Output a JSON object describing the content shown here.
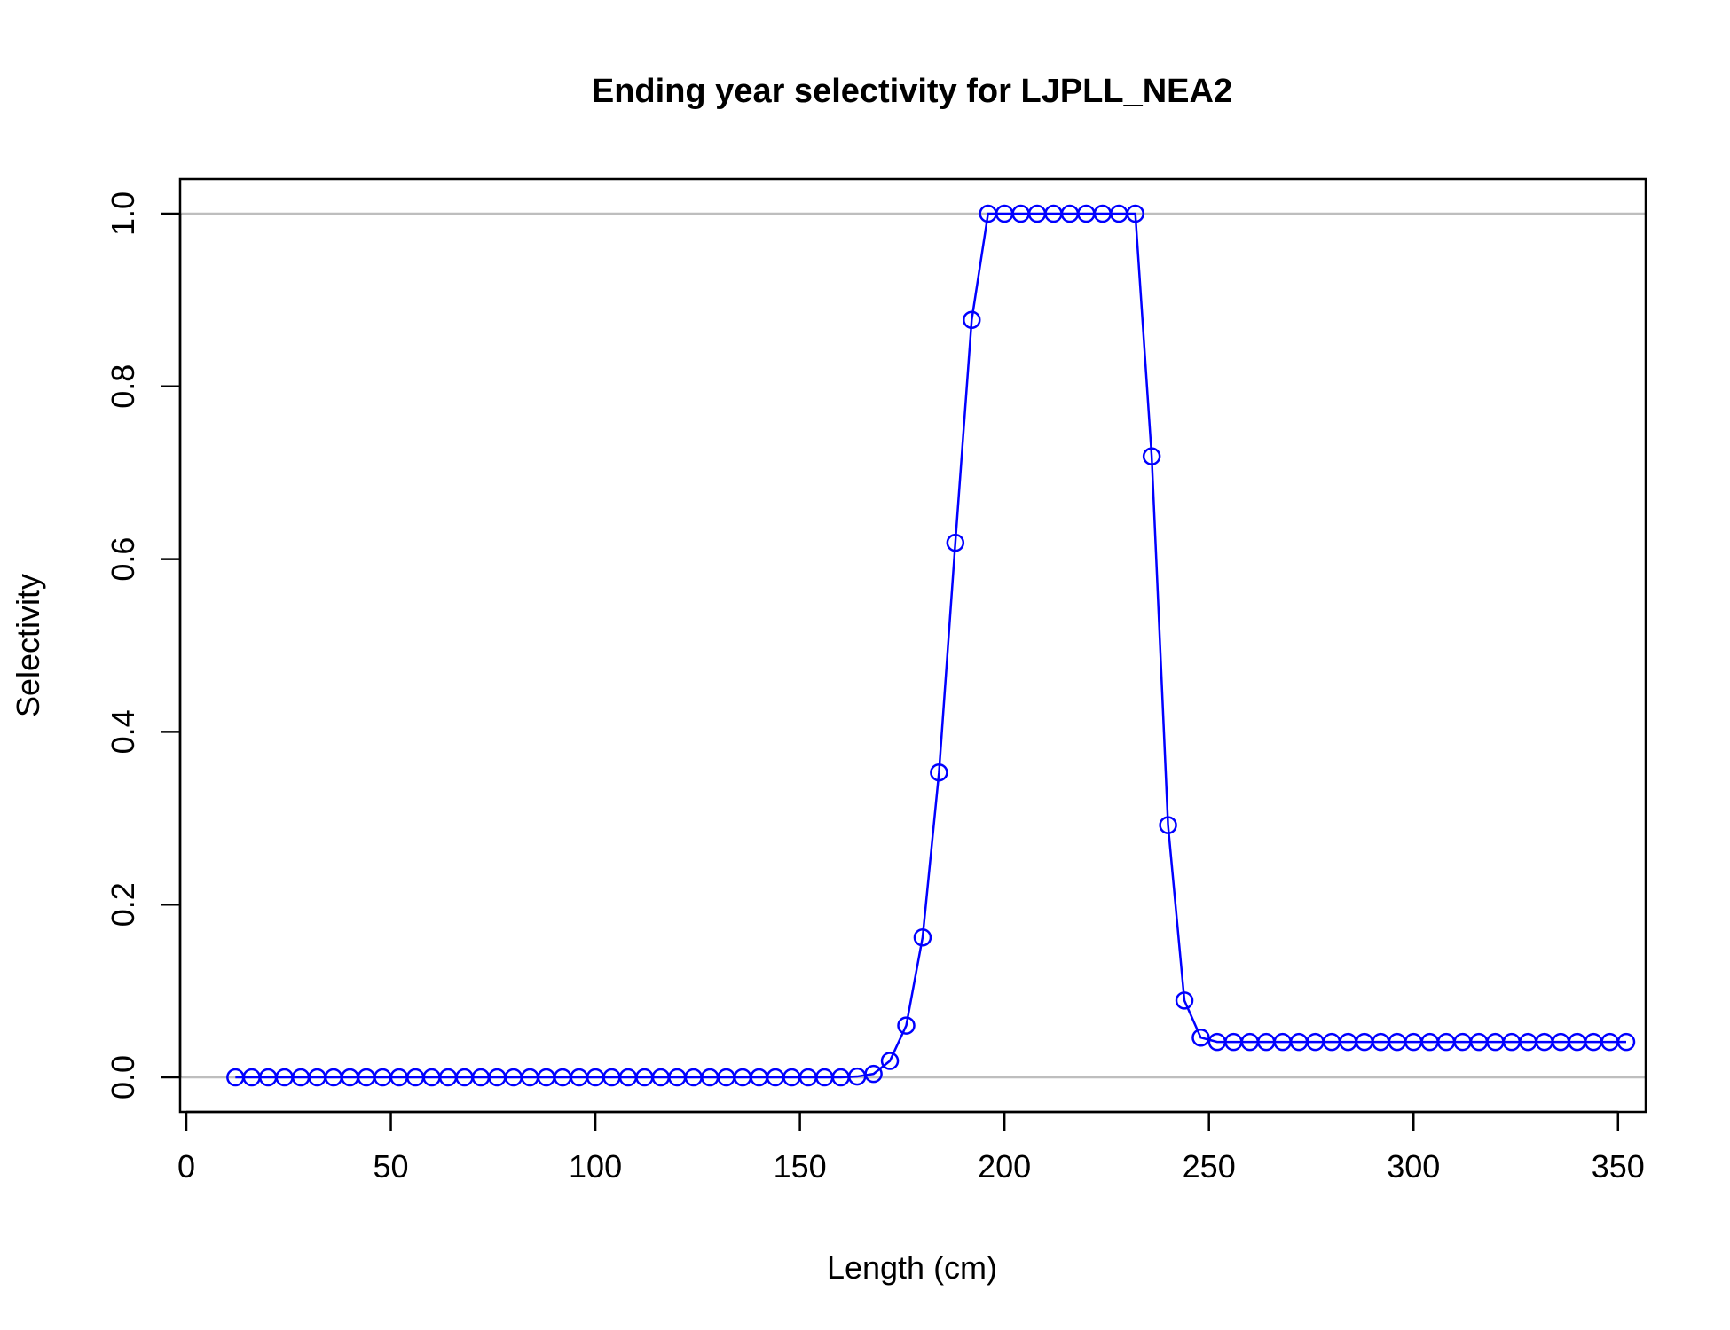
{
  "chart_data": {
    "type": "line",
    "title": "Ending year selectivity for LJPLL_NEA2",
    "xlabel": "Length (cm)",
    "ylabel": "Selectivity",
    "xlim": [
      0,
      352
    ],
    "ylim": [
      -0.04,
      1.04
    ],
    "x_ticks": [
      0,
      50,
      100,
      150,
      200,
      250,
      300,
      350
    ],
    "y_ticks": [
      0.0,
      0.2,
      0.4,
      0.6,
      0.8,
      1.0
    ],
    "x_tick_labels": [
      "0",
      "50",
      "100",
      "150",
      "200",
      "250",
      "300",
      "350"
    ],
    "y_tick_labels": [
      "0.0",
      "0.2",
      "0.4",
      "0.6",
      "0.8",
      "1.0"
    ],
    "reference_lines": [
      0,
      1
    ],
    "marker": "open-circle",
    "grid": false,
    "colors": {
      "series": "#0000ff",
      "reference": "#bebebe",
      "axis": "#000000"
    },
    "series": [
      {
        "x": [
          12,
          16,
          20,
          24,
          28,
          32,
          36,
          40,
          44,
          48,
          52,
          56,
          60,
          64,
          68,
          72,
          76,
          80,
          84,
          88,
          92,
          96,
          100,
          104,
          108,
          112,
          116,
          120,
          124,
          128,
          132,
          136,
          140,
          144,
          148,
          152,
          156,
          160,
          164,
          168,
          172,
          176,
          180,
          184,
          188,
          192,
          196,
          200,
          204,
          208,
          212,
          216,
          220,
          224,
          228,
          232,
          236,
          240,
          244,
          248,
          252,
          256,
          260,
          264,
          268,
          272,
          276,
          280,
          284,
          288,
          292,
          296,
          300,
          304,
          308,
          312,
          316,
          320,
          324,
          328,
          332,
          336,
          340,
          344,
          348,
          352
        ],
        "y": [
          0,
          0,
          0,
          0,
          0,
          0,
          0,
          0,
          0,
          0,
          0,
          0,
          0,
          0,
          0,
          0,
          0,
          0,
          0,
          0,
          0,
          0,
          0,
          0,
          0,
          0,
          0,
          0,
          0,
          0,
          0,
          0,
          0,
          0,
          0,
          0,
          0,
          0,
          0.001,
          0.004,
          0.019,
          0.06,
          0.162,
          0.353,
          0.619,
          0.877,
          1,
          1,
          1,
          1,
          1,
          1,
          1,
          1,
          1,
          1,
          0.719,
          0.292,
          0.089,
          0.046,
          0.041,
          0.041,
          0.041,
          0.041,
          0.041,
          0.041,
          0.041,
          0.041,
          0.041,
          0.041,
          0.041,
          0.041,
          0.041,
          0.041,
          0.041,
          0.041,
          0.041,
          0.041,
          0.041,
          0.041,
          0.041,
          0.041,
          0.041,
          0.041,
          0.041,
          0.041
        ]
      }
    ]
  }
}
